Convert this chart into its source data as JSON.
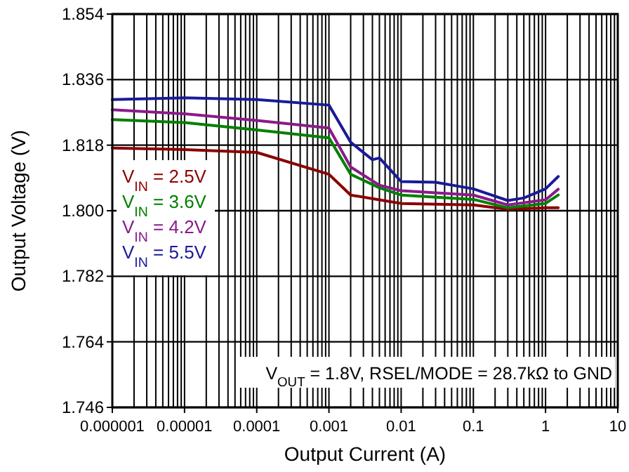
{
  "chart_data": {
    "type": "line",
    "xlabel": "Output Current (A)",
    "ylabel": "Output Voltage (V)",
    "log": "x",
    "grid": true,
    "legend": "left",
    "line_style": "solid",
    "marker": "none",
    "xlim": [
      1e-06,
      10
    ],
    "xticks": [
      {
        "value": 1e-06,
        "label": "0.000001"
      },
      {
        "value": 1e-05,
        "label": "0.00001"
      },
      {
        "value": 0.0001,
        "label": "0.0001"
      },
      {
        "value": 0.001,
        "label": "0.001"
      },
      {
        "value": 0.01,
        "label": "0.01"
      },
      {
        "value": 0.1,
        "label": "0.1"
      },
      {
        "value": 1,
        "label": "1"
      },
      {
        "value": 10,
        "label": "10"
      }
    ],
    "ylim": [
      1.746,
      1.854
    ],
    "yticks": [
      1.746,
      1.764,
      1.782,
      {
        "value": 1.8,
        "label": "1.800"
      },
      1.818,
      1.836,
      1.854
    ],
    "series": [
      {
        "name": "V$_{IN}$ = 2.5V",
        "color": "#8b0000",
        "x": [
          1e-06,
          1e-05,
          0.0001,
          0.001,
          0.002,
          0.005,
          0.01,
          0.1,
          0.3,
          1,
          1.5
        ],
        "values": [
          1.8172,
          1.8168,
          1.816,
          1.81,
          1.8043,
          1.803,
          1.802,
          1.8016,
          1.8004,
          1.8008,
          1.8008
        ]
      },
      {
        "name": "V$_{IN}$ = 3.6V",
        "color": "#008000",
        "x": [
          1e-06,
          1e-05,
          0.0001,
          0.001,
          0.002,
          0.005,
          0.01,
          0.1,
          0.3,
          1,
          1.5
        ],
        "values": [
          1.825,
          1.8242,
          1.8222,
          1.82,
          1.81,
          1.8063,
          1.8043,
          1.8031,
          1.8008,
          1.802,
          1.8043
        ]
      },
      {
        "name": "V$_{IN}$ = 4.2V",
        "color": "#8b1a8b",
        "x": [
          1e-06,
          1e-05,
          0.0001,
          0.001,
          0.002,
          0.005,
          0.01,
          0.1,
          0.3,
          1,
          1.5
        ],
        "values": [
          1.8277,
          1.8266,
          1.8248,
          1.8227,
          1.812,
          1.807,
          1.8055,
          1.8043,
          1.8016,
          1.803,
          1.8059
        ]
      },
      {
        "name": "V$_{IN}$ = 5.5V",
        "color": "#1a1a9a",
        "x": [
          1e-06,
          1e-05,
          0.0001,
          0.001,
          0.002,
          0.004,
          0.005,
          0.01,
          0.03,
          0.1,
          0.3,
          0.5,
          1,
          1.5
        ],
        "values": [
          1.8305,
          1.831,
          1.8305,
          1.829,
          1.8188,
          1.814,
          1.8145,
          1.808,
          1.8078,
          1.806,
          1.8028,
          1.8035,
          1.806,
          1.8094
        ]
      }
    ],
    "annotations": [
      "V$_{OUT}$ = 1.8V, RSEL/MODE = 28.7kΩ to GND"
    ]
  }
}
